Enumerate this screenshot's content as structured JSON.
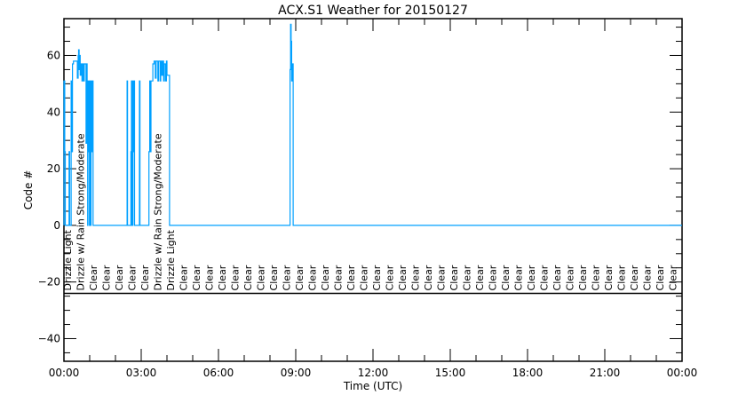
{
  "chart_data": {
    "type": "line",
    "title": "ACX.S1 Weather for 20150127",
    "xlabel": "Time (UTC)",
    "ylabel": "Code #",
    "xlim": [
      0,
      24
    ],
    "ylim": [
      -48,
      73
    ],
    "x_tick_labels": [
      "00:00",
      "03:00",
      "06:00",
      "09:00",
      "12:00",
      "15:00",
      "18:00",
      "21:00",
      "00:00"
    ],
    "y_ticks": [
      -40,
      -20,
      0,
      20,
      40,
      60
    ],
    "grid": false,
    "line_color": "#00a0ff",
    "separator_y": -24,
    "series": [
      {
        "points": [
          [
            0,
            0
          ],
          [
            0,
            51
          ],
          [
            0.03,
            26
          ],
          [
            0.05,
            0
          ],
          [
            0.2,
            26
          ],
          [
            0.22,
            0
          ],
          [
            0.28,
            51
          ],
          [
            0.31,
            26
          ],
          [
            0.33,
            57
          ],
          [
            0.37,
            58
          ],
          [
            0.5,
            58
          ],
          [
            0.52,
            52
          ],
          [
            0.55,
            60
          ],
          [
            0.57,
            62
          ],
          [
            0.59,
            55
          ],
          [
            0.61,
            60
          ],
          [
            0.63,
            53
          ],
          [
            0.66,
            57
          ],
          [
            0.7,
            51
          ],
          [
            0.73,
            57
          ],
          [
            0.76,
            51
          ],
          [
            0.79,
            57
          ],
          [
            0.85,
            57
          ],
          [
            0.86,
            29
          ],
          [
            0.88,
            57
          ],
          [
            0.9,
            51
          ],
          [
            0.92,
            0
          ],
          [
            0.93,
            51
          ],
          [
            0.95,
            26
          ],
          [
            0.97,
            51
          ],
          [
            0.99,
            0
          ],
          [
            1.01,
            51
          ],
          [
            1.03,
            0
          ],
          [
            1.05,
            51
          ],
          [
            1.08,
            26
          ],
          [
            1.1,
            51
          ],
          [
            1.13,
            0
          ],
          [
            2.45,
            0
          ],
          [
            2.45,
            51
          ],
          [
            2.47,
            0
          ],
          [
            2.6,
            0
          ],
          [
            2.6,
            26
          ],
          [
            2.62,
            51
          ],
          [
            2.64,
            0
          ],
          [
            2.68,
            51
          ],
          [
            2.7,
            26
          ],
          [
            2.72,
            51
          ],
          [
            2.74,
            0
          ],
          [
            2.93,
            0
          ],
          [
            2.93,
            51
          ],
          [
            2.95,
            0
          ],
          [
            3.3,
            0
          ],
          [
            3.3,
            26
          ],
          [
            3.33,
            51
          ],
          [
            3.36,
            26
          ],
          [
            3.38,
            51
          ],
          [
            3.42,
            51
          ],
          [
            3.45,
            57
          ],
          [
            3.5,
            58
          ],
          [
            3.55,
            52
          ],
          [
            3.58,
            58
          ],
          [
            3.62,
            58
          ],
          [
            3.65,
            51
          ],
          [
            3.68,
            58
          ],
          [
            3.72,
            58
          ],
          [
            3.74,
            51
          ],
          [
            3.76,
            58
          ],
          [
            3.8,
            53
          ],
          [
            3.83,
            58
          ],
          [
            3.87,
            51
          ],
          [
            3.9,
            57
          ],
          [
            3.95,
            51
          ],
          [
            3.98,
            58
          ],
          [
            4.0,
            53
          ],
          [
            4.1,
            53
          ],
          [
            4.1,
            0
          ],
          [
            8.78,
            0
          ],
          [
            8.78,
            55
          ],
          [
            8.8,
            71
          ],
          [
            8.82,
            65
          ],
          [
            8.84,
            51
          ],
          [
            8.86,
            57
          ],
          [
            8.88,
            57
          ],
          [
            8.9,
            0
          ],
          [
            24,
            0
          ]
        ]
      }
    ],
    "annotations": [
      "Drizzle Light",
      "Drizzle w/ Rain Strong/Moderate",
      "Clear",
      "Clear",
      "Clear",
      "Clear",
      "Clear",
      "Drizzle w/ Rain Strong/Moderate",
      "Drizzle Light",
      "Clear",
      "Clear",
      "Clear",
      "Clear",
      "Clear",
      "Clear",
      "Clear",
      "Clear",
      "Clear",
      "Clear",
      "Clear",
      "Clear",
      "Clear",
      "Clear",
      "Clear",
      "Clear",
      "Clear",
      "Clear",
      "Clear",
      "Clear",
      "Clear",
      "Clear",
      "Clear",
      "Clear",
      "Clear",
      "Clear",
      "Clear",
      "Clear",
      "Clear",
      "Clear",
      "Clear",
      "Clear",
      "Clear",
      "Clear",
      "Clear",
      "Clear",
      "Clear",
      "Clear",
      "Clear"
    ]
  }
}
